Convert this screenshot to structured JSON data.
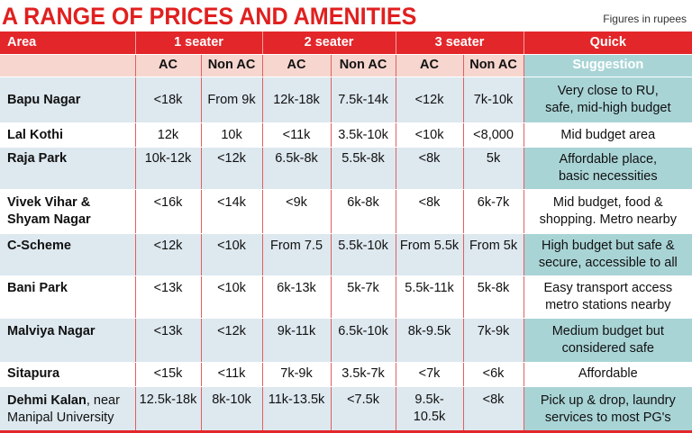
{
  "title": "A RANGE OF PRICES AND AMENITIES",
  "note": "Figures in rupees",
  "headers": {
    "area": "Area",
    "one_seater": "1 seater",
    "two_seater": "2 seater",
    "three_seater": "3 seater",
    "quick": "Quick",
    "suggestion": "Suggestion",
    "ac": "AC",
    "non_ac": "Non AC"
  },
  "rows": [
    {
      "area": [
        "Bapu Nagar"
      ],
      "s1_ac": "<18k",
      "s1_non": "From 9k",
      "s2_ac": "12k-18k",
      "s2_non": "7.5k-14k",
      "s3_ac": "<12k",
      "s3_non": "7k-10k",
      "suggestion": [
        "Very close to RU,",
        "safe, mid-high budget"
      ]
    },
    {
      "area": [
        "Lal Kothi"
      ],
      "s1_ac": "12k",
      "s1_non": "10k",
      "s2_ac": "<11k",
      "s2_non": "3.5k-10k",
      "s3_ac": "<10k",
      "s3_non": "<8,000",
      "suggestion": [
        "Mid budget area"
      ]
    },
    {
      "area": [
        "Raja Park"
      ],
      "s1_ac": "10k-12k",
      "s1_non": "<12k",
      "s2_ac": "6.5k-8k",
      "s2_non": "5.5k-8k",
      "s3_ac": "<8k",
      "s3_non": "5k",
      "suggestion": [
        "Affordable place,",
        "basic necessities"
      ]
    },
    {
      "area": [
        "Vivek Vihar &",
        "Shyam Nagar"
      ],
      "s1_ac": "<16k",
      "s1_non": "<14k",
      "s2_ac": "<9k",
      "s2_non": "6k-8k",
      "s3_ac": "<8k",
      "s3_non": "6k-7k",
      "suggestion": [
        "Mid budget, food &",
        "shopping. Metro nearby"
      ]
    },
    {
      "area": [
        "C-Scheme"
      ],
      "s1_ac": "<12k",
      "s1_non": "<10k",
      "s2_ac": "From 7.5",
      "s2_non": "5.5k-10k",
      "s3_ac": "From 5.5k",
      "s3_non": "From 5k",
      "suggestion": [
        "High budget but safe &",
        "secure, accessible to all"
      ]
    },
    {
      "area": [
        "Bani Park"
      ],
      "s1_ac": "<13k",
      "s1_non": "<10k",
      "s2_ac": "6k-13k",
      "s2_non": "5k-7k",
      "s3_ac": "5.5k-11k",
      "s3_non": "5k-8k",
      "suggestion": [
        "Easy transport access",
        "metro stations nearby"
      ]
    },
    {
      "area": [
        "Malviya Nagar"
      ],
      "s1_ac": "<13k",
      "s1_non": "<12k",
      "s2_ac": "9k-11k",
      "s2_non": "6.5k-10k",
      "s3_ac": "8k-9.5k",
      "s3_non": "7k-9k",
      "suggestion": [
        "Medium budget but",
        "considered safe"
      ]
    },
    {
      "area": [
        "Sitapura"
      ],
      "s1_ac": "<15k",
      "s1_non": "<11k",
      "s2_ac": "7k-9k",
      "s2_non": "3.5k-7k",
      "s3_ac": "<7k",
      "s3_non": "<6k",
      "suggestion": [
        "Affordable"
      ]
    },
    {
      "area": [
        "Dehmi Kalan",
        ", near",
        "Manipal University"
      ],
      "s1_ac": "12.5k-18k",
      "s1_non": "8k-10k",
      "s2_ac": "11k-13.5k",
      "s2_non": "<7.5k",
      "s3_ac": "9.5k-10.5k",
      "s3_non": "<8k",
      "suggestion": [
        "Pick up & drop, laundry",
        "services to most PG's"
      ]
    }
  ]
}
